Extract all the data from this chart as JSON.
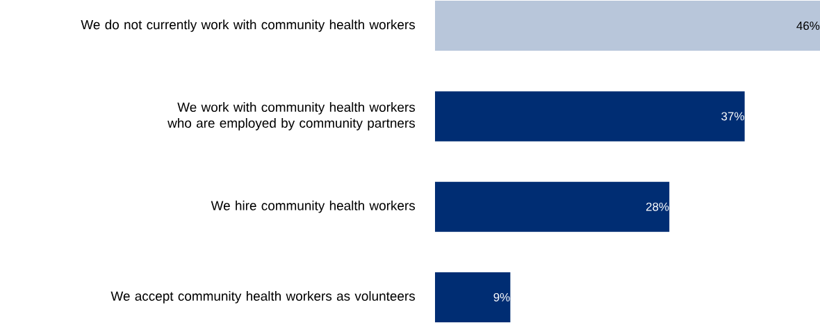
{
  "chart_data": {
    "type": "bar",
    "orientation": "horizontal",
    "categories": [
      "We do not currently work with community health workers",
      "We work with community health workers who are employed by community partners",
      "We hire community health workers",
      "We accept community health workers as volunteers"
    ],
    "values": [
      46,
      37,
      28,
      9
    ],
    "colors": [
      "#b8c6da",
      "#002d73",
      "#002d73",
      "#002d73"
    ],
    "value_labels": [
      "46%",
      "37%",
      "28%",
      "9%"
    ]
  }
}
